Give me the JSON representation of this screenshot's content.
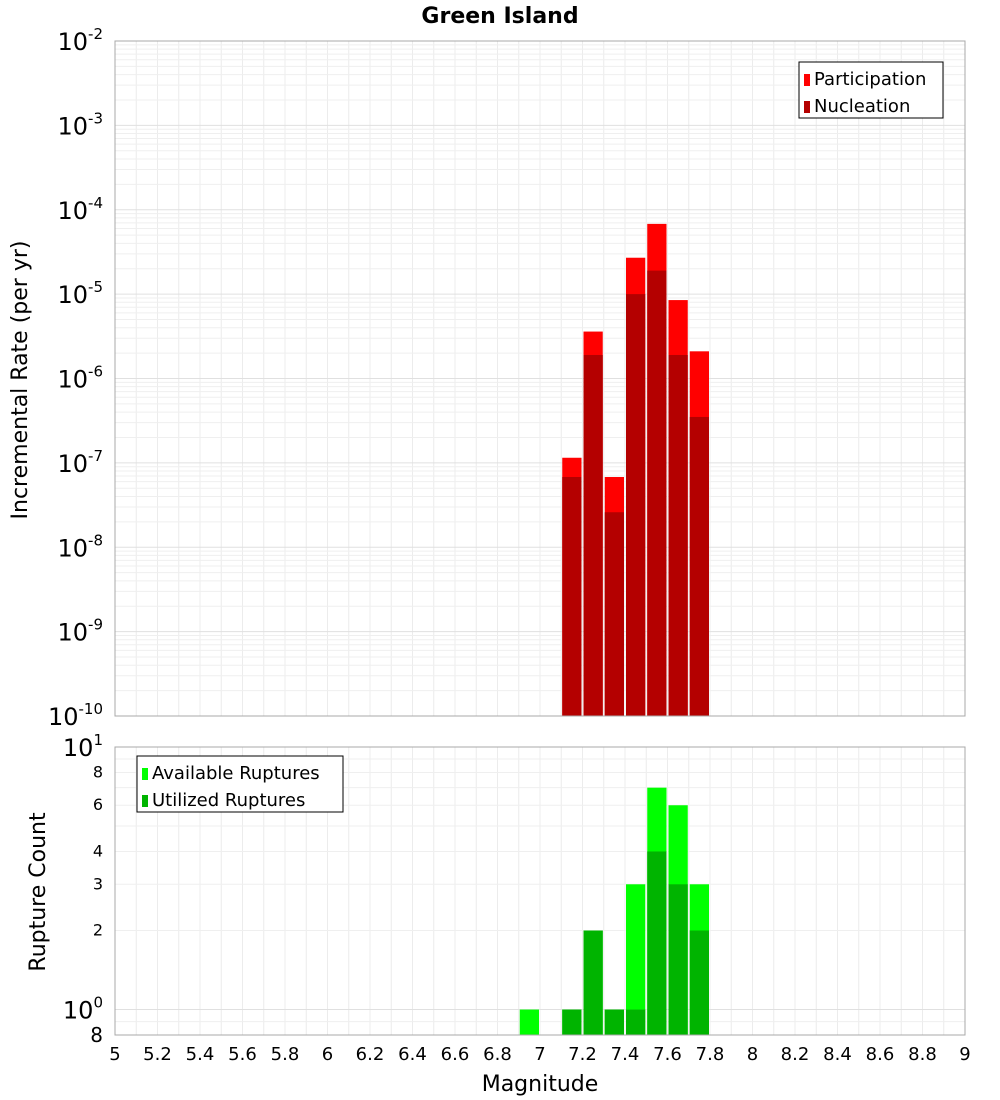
{
  "chart_data": [
    {
      "type": "bar",
      "title": "Green Island",
      "xlabel": "Magnitude",
      "ylabel": "Incremental Rate (per yr)",
      "yscale": "log",
      "xlim": [
        5,
        9
      ],
      "ylim": [
        1e-10,
        0.01
      ],
      "grid": true,
      "legend_position": "top-right",
      "y_ticks": [
        {
          "base": "10",
          "exp": "-2"
        },
        {
          "base": "10",
          "exp": "-3"
        },
        {
          "base": "10",
          "exp": "-4"
        },
        {
          "base": "10",
          "exp": "-5"
        },
        {
          "base": "10",
          "exp": "-6"
        },
        {
          "base": "10",
          "exp": "-7"
        },
        {
          "base": "10",
          "exp": "-8"
        },
        {
          "base": "10",
          "exp": "-9"
        },
        {
          "base": "10",
          "exp": "-10"
        }
      ],
      "bin_centers": [
        7.15,
        7.25,
        7.35,
        7.45,
        7.55,
        7.65,
        7.75
      ],
      "bin_width": 0.1,
      "series": [
        {
          "name": "Participation",
          "color": "#ff0000",
          "values": [
            1.15e-07,
            3.6e-06,
            6.8e-08,
            2.7e-05,
            6.8e-05,
            8.5e-06,
            2.1e-06
          ]
        },
        {
          "name": "Nucleation",
          "color": "#b40000",
          "values": [
            6.8e-08,
            1.9e-06,
            2.6e-08,
            1e-05,
            1.9e-05,
            1.9e-06,
            3.5e-07
          ]
        }
      ]
    },
    {
      "type": "bar",
      "xlabel": "Magnitude",
      "ylabel": "Rupture Count",
      "yscale": "log",
      "xlim": [
        5,
        9
      ],
      "ylim": [
        0.8,
        10
      ],
      "grid": true,
      "legend_position": "top-left",
      "y_ticks": [
        {
          "base": "10",
          "exp": "1"
        },
        {
          "base": "8",
          "exp": ""
        },
        {
          "base": "6",
          "exp": ""
        },
        {
          "base": "4",
          "exp": ""
        },
        {
          "base": "3",
          "exp": ""
        },
        {
          "base": "2",
          "exp": ""
        },
        {
          "base": "10",
          "exp": "0"
        },
        {
          "base": "8",
          "exp": ""
        }
      ],
      "y_tick_values": [
        10,
        8,
        6,
        4,
        3,
        2,
        1,
        0.8
      ],
      "x_ticks": [
        "5",
        "5.2",
        "5.4",
        "5.6",
        "5.8",
        "6",
        "6.2",
        "6.4",
        "6.6",
        "6.8",
        "7",
        "7.2",
        "7.4",
        "7.6",
        "7.8",
        "8",
        "8.2",
        "8.4",
        "8.6",
        "8.8",
        "9"
      ],
      "bin_centers": [
        6.95,
        7.15,
        7.25,
        7.35,
        7.45,
        7.55,
        7.65,
        7.75
      ],
      "bin_width": 0.1,
      "series": [
        {
          "name": "Available Ruptures",
          "color": "#00ff00",
          "values": [
            1,
            1,
            2,
            1,
            3,
            7,
            6,
            3
          ]
        },
        {
          "name": "Utilized Ruptures",
          "color": "#00b400",
          "values": [
            0,
            1,
            2,
            1,
            1,
            4,
            3,
            2
          ]
        }
      ]
    }
  ]
}
